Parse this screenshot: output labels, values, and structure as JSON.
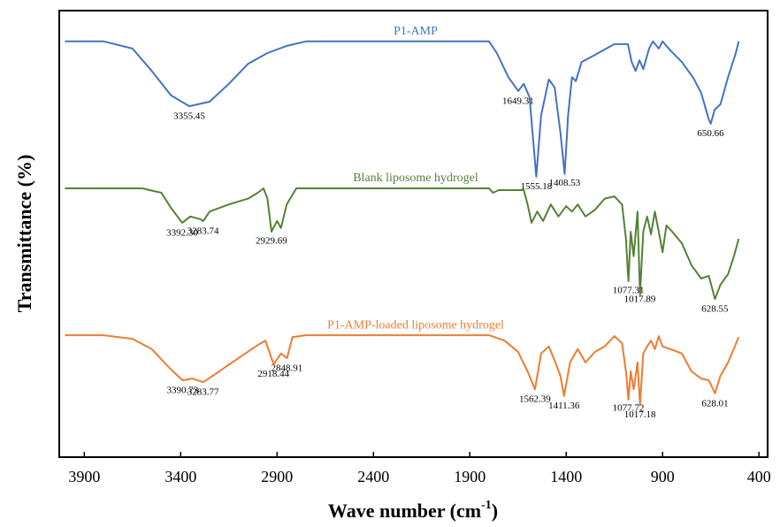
{
  "chart_data": {
    "type": "line",
    "x_label": {
      "text": "Wave number (cm",
      "sup": "-1",
      "end": ")"
    },
    "y_label": "Transmittance (%)",
    "xlim": [
      4030,
      355
    ],
    "ylim": [
      0,
      100
    ],
    "xticks": [
      3900,
      3400,
      2900,
      2400,
      1900,
      1400,
      900,
      400
    ],
    "series": [
      {
        "name": "P1-AMP",
        "color": "#4472c4",
        "peaks": [
          "3355.45",
          "1649.31",
          "1555.18",
          "1408.53",
          "650.66"
        ],
        "x": [
          4000,
          3800,
          3650,
          3550,
          3450,
          3355,
          3250,
          3150,
          3050,
          2950,
          2850,
          2750,
          2500,
          2000,
          1800,
          1760,
          1700,
          1649,
          1620,
          1590,
          1555,
          1530,
          1490,
          1460,
          1430,
          1408,
          1390,
          1370,
          1350,
          1320,
          1250,
          1150,
          1080,
          1060,
          1040,
          1020,
          1000,
          970,
          950,
          920,
          900,
          860,
          800,
          740,
          700,
          660,
          650,
          630,
          600,
          560,
          520,
          505
        ],
        "values": [
          93.1,
          93.1,
          91.5,
          86.5,
          81,
          78.6,
          79.6,
          83.6,
          88.1,
          90.5,
          92.1,
          93.1,
          93.1,
          93.1,
          93.1,
          90.5,
          85.1,
          82,
          83.6,
          80.6,
          62.8,
          76.6,
          84.6,
          82.8,
          72.7,
          63.4,
          76.6,
          85.1,
          84.2,
          88.5,
          90.1,
          92.5,
          92.5,
          88.5,
          86.5,
          88.9,
          86.9,
          91.5,
          93.1,
          91.5,
          93.1,
          91.1,
          88.5,
          84.9,
          81.6,
          75.6,
          74.7,
          77.8,
          79,
          85.1,
          90.5,
          93.1
        ]
      },
      {
        "name": "Blank liposome hydrogel",
        "color": "#548235",
        "peaks": [
          "3392.30",
          "3283.74",
          "2929.69",
          "1077.31",
          "1017.89",
          "628.55"
        ],
        "x": [
          4000,
          3600,
          3500,
          3450,
          3392,
          3350,
          3300,
          3283,
          3250,
          3150,
          3050,
          3000,
          2970,
          2950,
          2929,
          2900,
          2880,
          2850,
          2800,
          1800,
          1780,
          1750,
          1620,
          1600,
          1580,
          1550,
          1520,
          1480,
          1440,
          1400,
          1370,
          1340,
          1300,
          1250,
          1200,
          1150,
          1110,
          1090,
          1077,
          1065,
          1050,
          1030,
          1017,
          1000,
          980,
          960,
          940,
          920,
          900,
          880,
          850,
          800,
          750,
          700,
          660,
          628,
          600,
          560,
          530,
          505
        ],
        "values": [
          60.2,
          60.2,
          59.2,
          55.8,
          52.5,
          53.9,
          53.3,
          52.9,
          55,
          56.6,
          57.9,
          59.2,
          60.2,
          57.9,
          50.5,
          52.9,
          51.3,
          56.6,
          60.2,
          60.2,
          59.2,
          59.8,
          59.8,
          56.6,
          52.5,
          55,
          52.9,
          56.6,
          53.9,
          56.2,
          55,
          56.6,
          53.9,
          55.4,
          57.9,
          58.4,
          56.6,
          48.9,
          39.4,
          50.5,
          45,
          55,
          36.4,
          50.5,
          53.9,
          49.9,
          55,
          50.5,
          45.9,
          51.9,
          50.5,
          47.9,
          43,
          40,
          40.6,
          35.4,
          38.6,
          41,
          45,
          48.9
        ]
      },
      {
        "name": "P1-AMP-loaded liposome hydrogel",
        "color": "#ed7d31",
        "peaks": [
          "3390.73",
          "3283.77",
          "2918.44",
          "2848.91",
          "1562.39",
          "1411.36",
          "1077.72",
          "1017.18",
          "628.01"
        ],
        "x": [
          4000,
          3800,
          3650,
          3550,
          3450,
          3390,
          3340,
          3283,
          3200,
          3100,
          3000,
          2960,
          2918,
          2880,
          2848,
          2820,
          2750,
          1800,
          1720,
          1650,
          1600,
          1562,
          1530,
          1490,
          1460,
          1430,
          1411,
          1380,
          1340,
          1300,
          1250,
          1200,
          1150,
          1110,
          1090,
          1077,
          1065,
          1050,
          1030,
          1017,
          1000,
          980,
          960,
          940,
          920,
          900,
          860,
          800,
          750,
          700,
          660,
          628,
          600,
          560,
          505
        ],
        "values": [
          27.3,
          27.3,
          26.5,
          24.2,
          19.6,
          17.2,
          17.6,
          16.8,
          19.2,
          22.2,
          25.1,
          26.1,
          20.8,
          23.2,
          22.2,
          26.9,
          27.3,
          27.3,
          26.1,
          23.6,
          19.2,
          15.2,
          23.2,
          24.8,
          21.6,
          18.2,
          13.7,
          21.2,
          24.2,
          21.2,
          23.6,
          24.8,
          27.1,
          25.5,
          19.2,
          12.9,
          19.2,
          15.2,
          21.2,
          11.7,
          23.2,
          24.8,
          26.1,
          24.2,
          27.1,
          24.8,
          24.2,
          23.2,
          19.2,
          17.6,
          17.2,
          14.3,
          18.2,
          21.2,
          26.9
        ]
      }
    ]
  }
}
